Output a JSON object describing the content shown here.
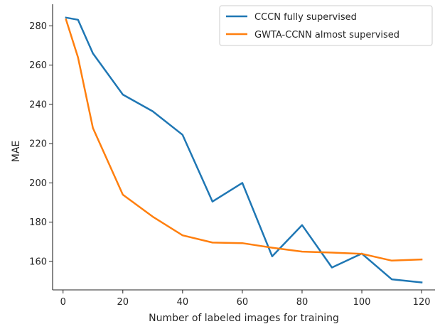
{
  "chart_data": {
    "type": "line",
    "title": "",
    "xlabel": "Number of labeled images for training",
    "ylabel": "MAE",
    "xlim": [
      -3.5,
      124.5
    ],
    "ylim": [
      145.5,
      291
    ],
    "x_ticks": [
      0,
      20,
      40,
      60,
      80,
      100,
      120
    ],
    "y_ticks": [
      160,
      180,
      200,
      220,
      240,
      260,
      280
    ],
    "grid": false,
    "legend_position": "top-right",
    "series": [
      {
        "name": "CCCN fully supervised",
        "color": "#1f77b4",
        "x": [
          1,
          5,
          10,
          20,
          30,
          40,
          50,
          60,
          70,
          80,
          90,
          100,
          110,
          120
        ],
        "values": [
          284.2,
          283.1,
          266.0,
          245.0,
          236.5,
          224.5,
          190.5,
          200.0,
          162.6,
          178.5,
          156.9,
          164.0,
          150.9,
          149.3
        ]
      },
      {
        "name": "GWTA-CCNN almost supervised",
        "color": "#ff7f0e",
        "x": [
          1,
          5,
          10,
          20,
          30,
          40,
          50,
          60,
          70,
          80,
          90,
          100,
          110,
          120
        ],
        "values": [
          283.2,
          264.0,
          228.0,
          194.0,
          182.8,
          173.3,
          169.6,
          169.3,
          167.0,
          165.0,
          164.5,
          163.9,
          160.4,
          161.0
        ]
      }
    ]
  }
}
